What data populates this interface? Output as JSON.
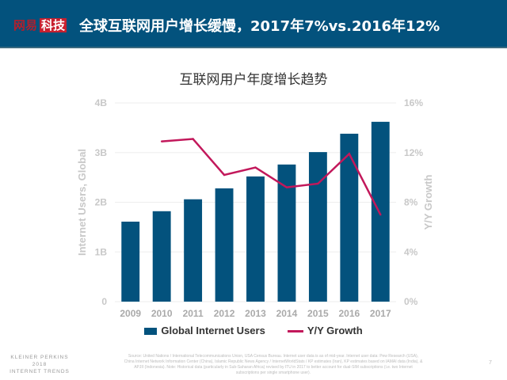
{
  "header": {
    "logo_part1": "网易",
    "logo_part2": "科技",
    "title": "全球互联网用户增长缓慢，2017年7%vs.2016年12%"
  },
  "chart_data": {
    "type": "bar+line",
    "title": "互联网用户年度增长趋势",
    "categories": [
      "2009",
      "2010",
      "2011",
      "2012",
      "2013",
      "2014",
      "2015",
      "2016",
      "2017"
    ],
    "series": [
      {
        "name": "Global Internet Users",
        "type": "bar",
        "axis": "left",
        "unit": "B",
        "color": "#03527d",
        "values": [
          1.61,
          1.82,
          2.06,
          2.28,
          2.52,
          2.76,
          3.01,
          3.38,
          3.62
        ]
      },
      {
        "name": "Y/Y Growth",
        "type": "line",
        "axis": "right",
        "unit": "%",
        "color": "#c2185b",
        "values": [
          null,
          12.9,
          13.1,
          10.2,
          10.8,
          9.2,
          9.5,
          11.9,
          7.0
        ]
      }
    ],
    "ylabel": "Internet Users, Global",
    "y2label": "Y/Y Growth",
    "ylim": [
      0,
      4
    ],
    "y2lim": [
      0,
      16
    ],
    "yticks": [
      "0",
      "1B",
      "2B",
      "3B",
      "4B"
    ],
    "y2ticks": [
      "0%",
      "4%",
      "8%",
      "12%",
      "16%"
    ],
    "grid": true,
    "legend": "bottom"
  },
  "footer": {
    "kp_line1": "KLEINER PERKINS",
    "kp_line2": "2018",
    "kp_line3": "INTERNET TRENDS",
    "source": "Source: United Nations / International Telecommunications Union, USA Census Bureau. Internet user data is as of mid-year. Internet user data: Pew Research (USA), China Internet Network Information Center (China), Islamic Republic News Agency / InternetWorldStats / KP estimates (Iran), KP estimates based on IAMAI data (India), & APJII (Indonesia). Note: Historical data (particularly in Sub-Saharan Africa) revised by ITU in 2017 to better account for dual-SIM subscriptions (i.e. two Internet subscriptions per single smartphone user).",
    "page": "7"
  }
}
